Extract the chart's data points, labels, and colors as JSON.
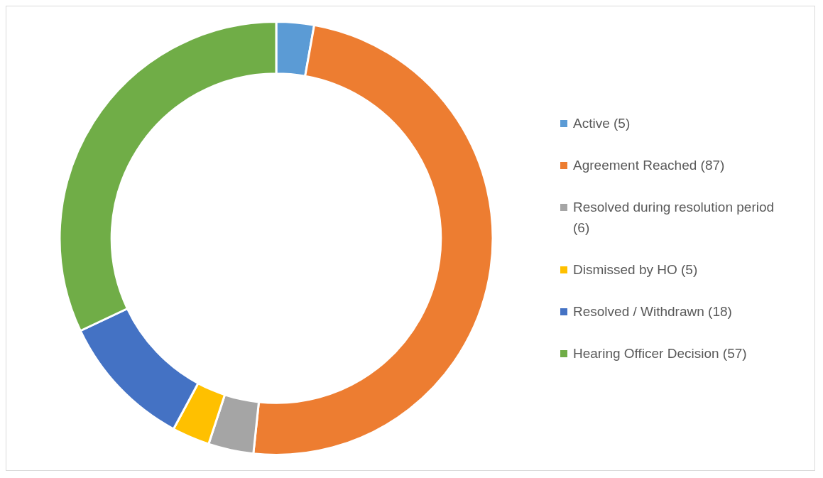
{
  "chart_data": {
    "type": "donut",
    "categories": [
      "Active (5)",
      "Agreement Reached (87)",
      "Resolved during resolution period (6)",
      "Dismissed by HO (5)",
      "Resolved / Withdrawn (18)",
      "Hearing Officer Decision (57)"
    ],
    "values": [
      5,
      87,
      6,
      5,
      18,
      57
    ],
    "colors": [
      "#5b9bd5",
      "#ed7d31",
      "#a5a5a5",
      "#ffc000",
      "#4472c4",
      "#70ad47"
    ],
    "legend": "right"
  }
}
